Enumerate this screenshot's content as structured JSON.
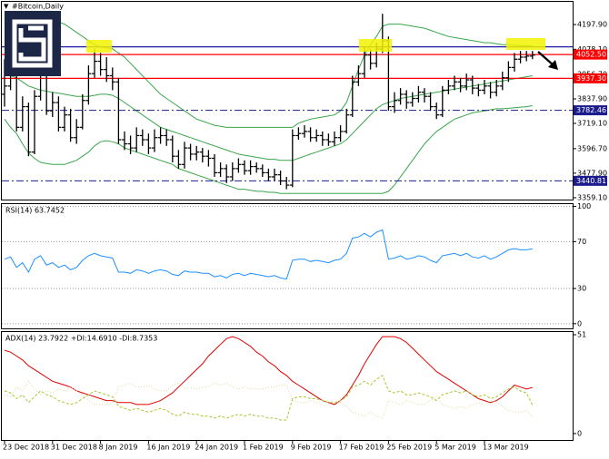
{
  "header": {
    "symbol": "#Bitcoin,Daily"
  },
  "chart_data": [
    {
      "type": "ohlc",
      "categories": [
        "23 Dec 2018",
        null,
        null,
        null,
        null,
        null,
        null,
        null,
        "31 Dec 2018",
        null,
        null,
        null,
        null,
        null,
        null,
        null,
        "8 Jan 2019",
        null,
        null,
        null,
        null,
        null,
        null,
        null,
        "16 Jan 2019",
        null,
        null,
        null,
        null,
        null,
        null,
        null,
        "24 Jan 2019",
        null,
        null,
        null,
        null,
        null,
        null,
        null,
        "1 Feb 2019",
        null,
        null,
        null,
        null,
        null,
        null,
        null,
        "9 Feb 2019",
        null,
        null,
        null,
        null,
        null,
        null,
        null,
        "17 Feb 2019",
        null,
        null,
        null,
        null,
        null,
        null,
        null,
        "25 Feb 2019",
        null,
        null,
        null,
        null,
        null,
        null,
        null,
        "5 Mar 2019",
        null,
        null,
        null,
        null,
        null,
        null,
        null,
        "13 Mar 2019",
        null,
        null,
        null,
        null,
        null,
        null,
        null,
        null
      ],
      "open": [
        3860,
        3900,
        3960,
        3700,
        3800,
        3580,
        3850,
        3950,
        3780,
        3820,
        3700,
        3760,
        3650,
        3700,
        3830,
        3960,
        4020,
        3980,
        3950,
        3920,
        3640,
        3620,
        3600,
        3660,
        3640,
        3600,
        3650,
        3660,
        3640,
        3560,
        3520,
        3600,
        3570,
        3580,
        3560,
        3550,
        3480,
        3500,
        3460,
        3500,
        3520,
        3490,
        3510,
        3500,
        3480,
        3460,
        3470,
        3440,
        3420,
        3660,
        3670,
        3680,
        3650,
        3660,
        3640,
        3630,
        3650,
        3680,
        3760,
        3920,
        3960,
        4050,
        4010,
        4080,
        4120,
        3800,
        3830,
        3860,
        3820,
        3840,
        3870,
        3850,
        3800,
        3760,
        3880,
        3900,
        3920,
        3900,
        3930,
        3890,
        3880,
        3900,
        3870,
        3900,
        3940,
        3990,
        4030,
        4040,
        4045
      ],
      "high": [
        4030,
        4060,
        3990,
        3850,
        3820,
        3880,
        4000,
        3970,
        3870,
        3850,
        3800,
        3790,
        3740,
        3860,
        4000,
        4080,
        4060,
        4040,
        3990,
        3940,
        3680,
        3660,
        3700,
        3690,
        3670,
        3690,
        3700,
        3690,
        3660,
        3590,
        3630,
        3620,
        3610,
        3600,
        3590,
        3570,
        3530,
        3520,
        3530,
        3550,
        3540,
        3540,
        3530,
        3520,
        3500,
        3500,
        3490,
        3460,
        3690,
        3700,
        3710,
        3700,
        3690,
        3680,
        3670,
        3680,
        3710,
        3790,
        3950,
        4000,
        4090,
        4080,
        4110,
        4250,
        4140,
        3870,
        3890,
        3880,
        3870,
        3900,
        3890,
        3870,
        3820,
        3900,
        3930,
        3950,
        3940,
        3960,
        3950,
        3910,
        3930,
        3920,
        3930,
        3970,
        4020,
        4060,
        4070,
        4070,
        4070
      ],
      "low": [
        3800,
        3880,
        3680,
        3680,
        3560,
        3570,
        3830,
        3760,
        3750,
        3680,
        3680,
        3630,
        3620,
        3690,
        3810,
        3940,
        3950,
        3920,
        3880,
        3620,
        3590,
        3570,
        3580,
        3610,
        3570,
        3580,
        3620,
        3610,
        3530,
        3500,
        3500,
        3540,
        3540,
        3530,
        3510,
        3460,
        3460,
        3430,
        3440,
        3480,
        3470,
        3470,
        3480,
        3460,
        3440,
        3440,
        3420,
        3400,
        3410,
        3640,
        3650,
        3630,
        3630,
        3610,
        3610,
        3610,
        3630,
        3670,
        3750,
        3900,
        3940,
        3980,
        3990,
        4060,
        3780,
        3770,
        3810,
        3790,
        3800,
        3820,
        3820,
        3780,
        3740,
        3750,
        3860,
        3880,
        3870,
        3880,
        3860,
        3850,
        3860,
        3840,
        3850,
        3880,
        3920,
        3970,
        4010,
        4020,
        4030
      ],
      "close": [
        3900,
        3960,
        3700,
        3800,
        3580,
        3850,
        3950,
        3780,
        3820,
        3700,
        3760,
        3650,
        3700,
        3830,
        3960,
        4020,
        3980,
        3950,
        3920,
        3640,
        3620,
        3600,
        3660,
        3640,
        3600,
        3650,
        3660,
        3640,
        3560,
        3520,
        3600,
        3570,
        3580,
        3560,
        3550,
        3480,
        3500,
        3460,
        3500,
        3520,
        3490,
        3510,
        3500,
        3480,
        3460,
        3470,
        3440,
        3420,
        3660,
        3670,
        3680,
        3650,
        3660,
        3640,
        3630,
        3650,
        3680,
        3760,
        3920,
        3960,
        4050,
        4010,
        4080,
        4120,
        3800,
        3830,
        3860,
        3820,
        3840,
        3870,
        3850,
        3800,
        3760,
        3880,
        3900,
        3920,
        3900,
        3930,
        3890,
        3880,
        3900,
        3870,
        3900,
        3940,
        3990,
        4030,
        4040,
        4045,
        4050
      ],
      "color": "#000000",
      "series": [
        {
          "color": "#3aa64a",
          "values": [
            4180,
            4200,
            4210,
            4220,
            4225,
            4230,
            4230,
            4225,
            4220,
            4210,
            4200,
            4180,
            4160,
            4140,
            4120,
            4100,
            4090,
            4085,
            4080,
            4060,
            4040,
            4010,
            3980,
            3950,
            3920,
            3890,
            3860,
            3840,
            3820,
            3800,
            3780,
            3760,
            3740,
            3730,
            3720,
            3710,
            3705,
            3700,
            3700,
            3700,
            3700,
            3700,
            3700,
            3700,
            3700,
            3700,
            3700,
            3700,
            3700,
            3720,
            3730,
            3740,
            3745,
            3750,
            3755,
            3760,
            3780,
            3820,
            3900,
            3980,
            4050,
            4100,
            4140,
            4190,
            4200,
            4200,
            4200,
            4195,
            4190,
            4185,
            4180,
            4170,
            4160,
            4150,
            4140,
            4135,
            4130,
            4125,
            4120,
            4115,
            4110,
            4110,
            4105,
            4100,
            4100,
            4098,
            4096,
            4095,
            4095
          ]
        },
        {
          "color": "#3aa64a",
          "values": [
            3960,
            3950,
            3940,
            3920,
            3900,
            3890,
            3880,
            3875,
            3870,
            3865,
            3860,
            3855,
            3850,
            3850,
            3850,
            3855,
            3860,
            3860,
            3855,
            3840,
            3820,
            3800,
            3780,
            3760,
            3740,
            3720,
            3700,
            3690,
            3680,
            3670,
            3660,
            3650,
            3640,
            3630,
            3620,
            3610,
            3600,
            3590,
            3580,
            3570,
            3565,
            3560,
            3555,
            3550,
            3545,
            3545,
            3540,
            3540,
            3540,
            3550,
            3560,
            3570,
            3580,
            3590,
            3600,
            3610,
            3620,
            3640,
            3670,
            3700,
            3730,
            3760,
            3790,
            3810,
            3820,
            3830,
            3840,
            3845,
            3850,
            3855,
            3860,
            3865,
            3870,
            3875,
            3880,
            3885,
            3890,
            3895,
            3900,
            3905,
            3910,
            3915,
            3920,
            3925,
            3930,
            3935,
            3940,
            3945,
            3950
          ]
        },
        {
          "color": "#3aa64a",
          "values": [
            3740,
            3700,
            3670,
            3620,
            3575,
            3550,
            3530,
            3525,
            3520,
            3520,
            3520,
            3530,
            3540,
            3560,
            3580,
            3610,
            3630,
            3635,
            3630,
            3620,
            3600,
            3590,
            3580,
            3570,
            3560,
            3550,
            3540,
            3530,
            3520,
            3500,
            3490,
            3480,
            3470,
            3460,
            3450,
            3440,
            3430,
            3420,
            3410,
            3400,
            3400,
            3395,
            3390,
            3390,
            3385,
            3385,
            3380,
            3380,
            3380,
            3380,
            3380,
            3380,
            3380,
            3380,
            3380,
            3380,
            3380,
            3380,
            3380,
            3380,
            3380,
            3380,
            3380,
            3380,
            3390,
            3420,
            3460,
            3500,
            3540,
            3580,
            3620,
            3650,
            3680,
            3700,
            3720,
            3740,
            3750,
            3760,
            3770,
            3775,
            3780,
            3785,
            3790,
            3790,
            3792,
            3795,
            3798,
            3800,
            3805
          ]
        }
      ],
      "hlines": [
        {
          "value": 4090,
          "color": "#1c1ca8",
          "style": "solid"
        },
        {
          "value": 4052.5,
          "label": "4052.50",
          "color": "#ff0000",
          "style": "solid"
        },
        {
          "value": 3937.3,
          "label": "3937.30",
          "color": "#ff0000",
          "style": "solid"
        },
        {
          "value": 3782.46,
          "label": "3782.46",
          "color": "#1c1c8c",
          "style": "dashdot"
        },
        {
          "value": 3440.81,
          "label": "3440.81",
          "color": "#1c1c8c",
          "style": "dashdot"
        }
      ],
      "ylim": [
        3350,
        4308
      ],
      "yticks": [
        {
          "value": 4197.9,
          "label": "4197.90"
        },
        {
          "value": 4078.1,
          "label": "4078.10"
        },
        {
          "value": 3956.7,
          "label": "3956.70"
        },
        {
          "value": 3837.9,
          "label": "3837.90"
        },
        {
          "value": 3719.1,
          "label": "3719.10"
        },
        {
          "value": 3596.7,
          "label": "3596.70"
        },
        {
          "value": 3477.9,
          "label": "3477.90"
        },
        {
          "value": 3359.1,
          "label": "3359.10"
        }
      ],
      "grid": false
    },
    {
      "type": "line",
      "title": "RSI(14) 63.7452",
      "color": "#1e90ff",
      "values": [
        55,
        57,
        48,
        52,
        44,
        55,
        58,
        50,
        52,
        48,
        50,
        46,
        48,
        54,
        58,
        60,
        58,
        57,
        56,
        44,
        44,
        43,
        46,
        45,
        43,
        45,
        46,
        45,
        42,
        41,
        45,
        44,
        44,
        43,
        43,
        40,
        41,
        39,
        42,
        43,
        41,
        43,
        42,
        41,
        40,
        41,
        39,
        38,
        54,
        55,
        55,
        53,
        54,
        53,
        52,
        54,
        55,
        60,
        73,
        74,
        77,
        74,
        78,
        80,
        55,
        56,
        58,
        55,
        56,
        58,
        57,
        54,
        52,
        58,
        59,
        60,
        58,
        60,
        57,
        56,
        58,
        55,
        57,
        60,
        63,
        64,
        63,
        63,
        63.7452
      ],
      "ylim": [
        -4,
        102
      ],
      "yticks": [
        100,
        70,
        30,
        0
      ],
      "grid": true
    },
    {
      "type": "line",
      "title": "ADX(14) 23.7922 +DI:14.6910 -DI:8.7353",
      "series": [
        {
          "color": "#e00000",
          "dash": "none",
          "values": [
            43,
            42,
            40,
            38,
            35,
            33,
            31,
            29,
            27,
            26,
            25,
            24,
            22,
            21,
            20,
            19,
            18,
            17,
            17,
            16,
            16,
            16,
            15,
            15,
            15,
            16,
            17,
            19,
            21,
            24,
            27,
            30,
            33,
            36,
            40,
            43,
            46,
            49,
            50,
            49,
            47,
            45,
            42,
            40,
            37,
            35,
            32,
            30,
            27,
            25,
            23,
            21,
            19,
            17,
            16,
            15,
            17,
            20,
            25,
            30,
            36,
            41,
            46,
            50,
            50,
            50,
            49,
            47,
            44,
            41,
            38,
            35,
            32,
            30,
            28,
            26,
            24,
            22,
            20,
            18,
            17,
            16,
            17,
            19,
            22,
            25,
            24,
            23,
            23.7922
          ]
        },
        {
          "color": "#a6c832",
          "dash": "3,2",
          "values": [
            22,
            21,
            18,
            20,
            16,
            19,
            22,
            20,
            19,
            17,
            16,
            15,
            16,
            18,
            20,
            22,
            21,
            20,
            19,
            14,
            13,
            12,
            13,
            12,
            11,
            12,
            13,
            12,
            10,
            9,
            11,
            10,
            10,
            9,
            9,
            8,
            9,
            8,
            9,
            10,
            9,
            10,
            9,
            9,
            8,
            8,
            7,
            7,
            18,
            19,
            19,
            18,
            18,
            17,
            16,
            16,
            17,
            19,
            24,
            25,
            27,
            25,
            28,
            30,
            22,
            21,
            22,
            20,
            20,
            21,
            20,
            19,
            17,
            20,
            21,
            22,
            21,
            22,
            20,
            19,
            20,
            18,
            19,
            21,
            23,
            24,
            22,
            21,
            14.691
          ]
        },
        {
          "color": "#e3d79a",
          "dash": "1,2",
          "values": [
            20,
            19,
            24,
            22,
            27,
            23,
            20,
            22,
            21,
            23,
            22,
            24,
            22,
            20,
            17,
            15,
            15,
            15,
            16,
            24,
            25,
            26,
            24,
            24,
            25,
            23,
            22,
            22,
            25,
            26,
            23,
            24,
            23,
            24,
            24,
            26,
            25,
            26,
            24,
            23,
            24,
            23,
            23,
            23,
            24,
            24,
            25,
            25,
            17,
            16,
            16,
            17,
            16,
            17,
            17,
            16,
            16,
            14,
            11,
            10,
            9,
            11,
            9,
            8,
            17,
            16,
            15,
            17,
            16,
            15,
            15,
            17,
            19,
            15,
            14,
            13,
            14,
            13,
            15,
            16,
            15,
            17,
            16,
            14,
            12,
            11,
            11,
            12,
            8.7353
          ]
        }
      ],
      "ylim": [
        -3.3,
        52.4
      ],
      "yticks": [
        51,
        0
      ],
      "grid": false
    }
  ]
}
